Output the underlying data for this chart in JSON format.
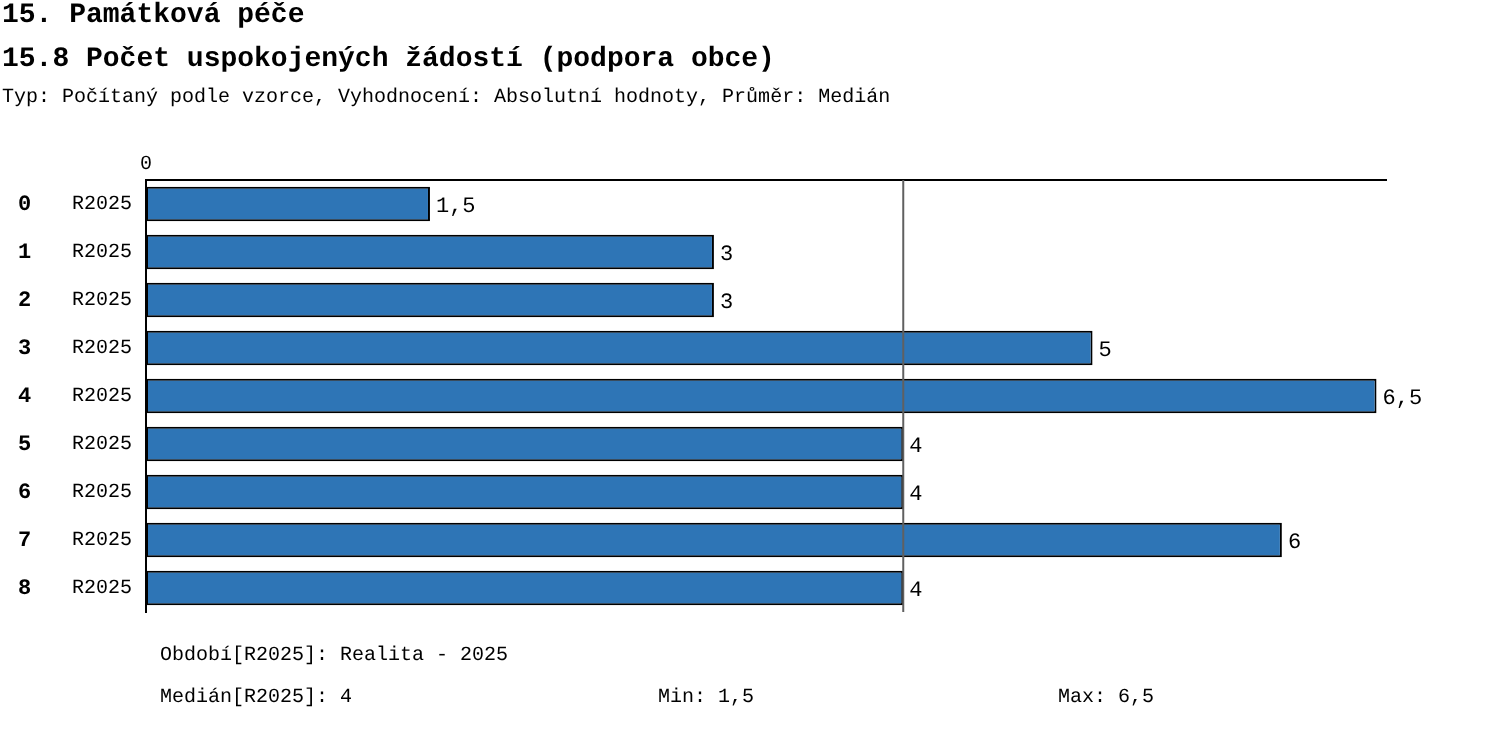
{
  "chart_data": {
    "type": "bar",
    "orientation": "horizontal",
    "title": "15. Památková péče",
    "subtitle": "15.8 Počet uspokojených žádostí (podpora obce)",
    "categories": [
      "0",
      "1",
      "2",
      "3",
      "4",
      "5",
      "6",
      "7",
      "8"
    ],
    "series": [
      {
        "name": "R2025",
        "color": "#2e75b6",
        "values": [
          1.5,
          3,
          3,
          5,
          6.5,
          4,
          4,
          6,
          4
        ],
        "value_labels": [
          "1,5",
          "3",
          "3",
          "5",
          "6,5",
          "4",
          "4",
          "6",
          "4"
        ]
      }
    ],
    "xlim": [
      0,
      6.55
    ],
    "legend": false,
    "ref_lines": [
      {
        "axis": "x",
        "value": 4,
        "color": "#606060"
      }
    ],
    "annotations": [
      "0",
      "Typ: Počítaný podle vzorce, Vyhodnocení: Absolutní hodnoty, Průměr: Medián",
      "Období[R2025]: Realita - 2025",
      "Medián[R2025]: 4",
      "Min: 1,5",
      "Max: 6,5"
    ]
  }
}
